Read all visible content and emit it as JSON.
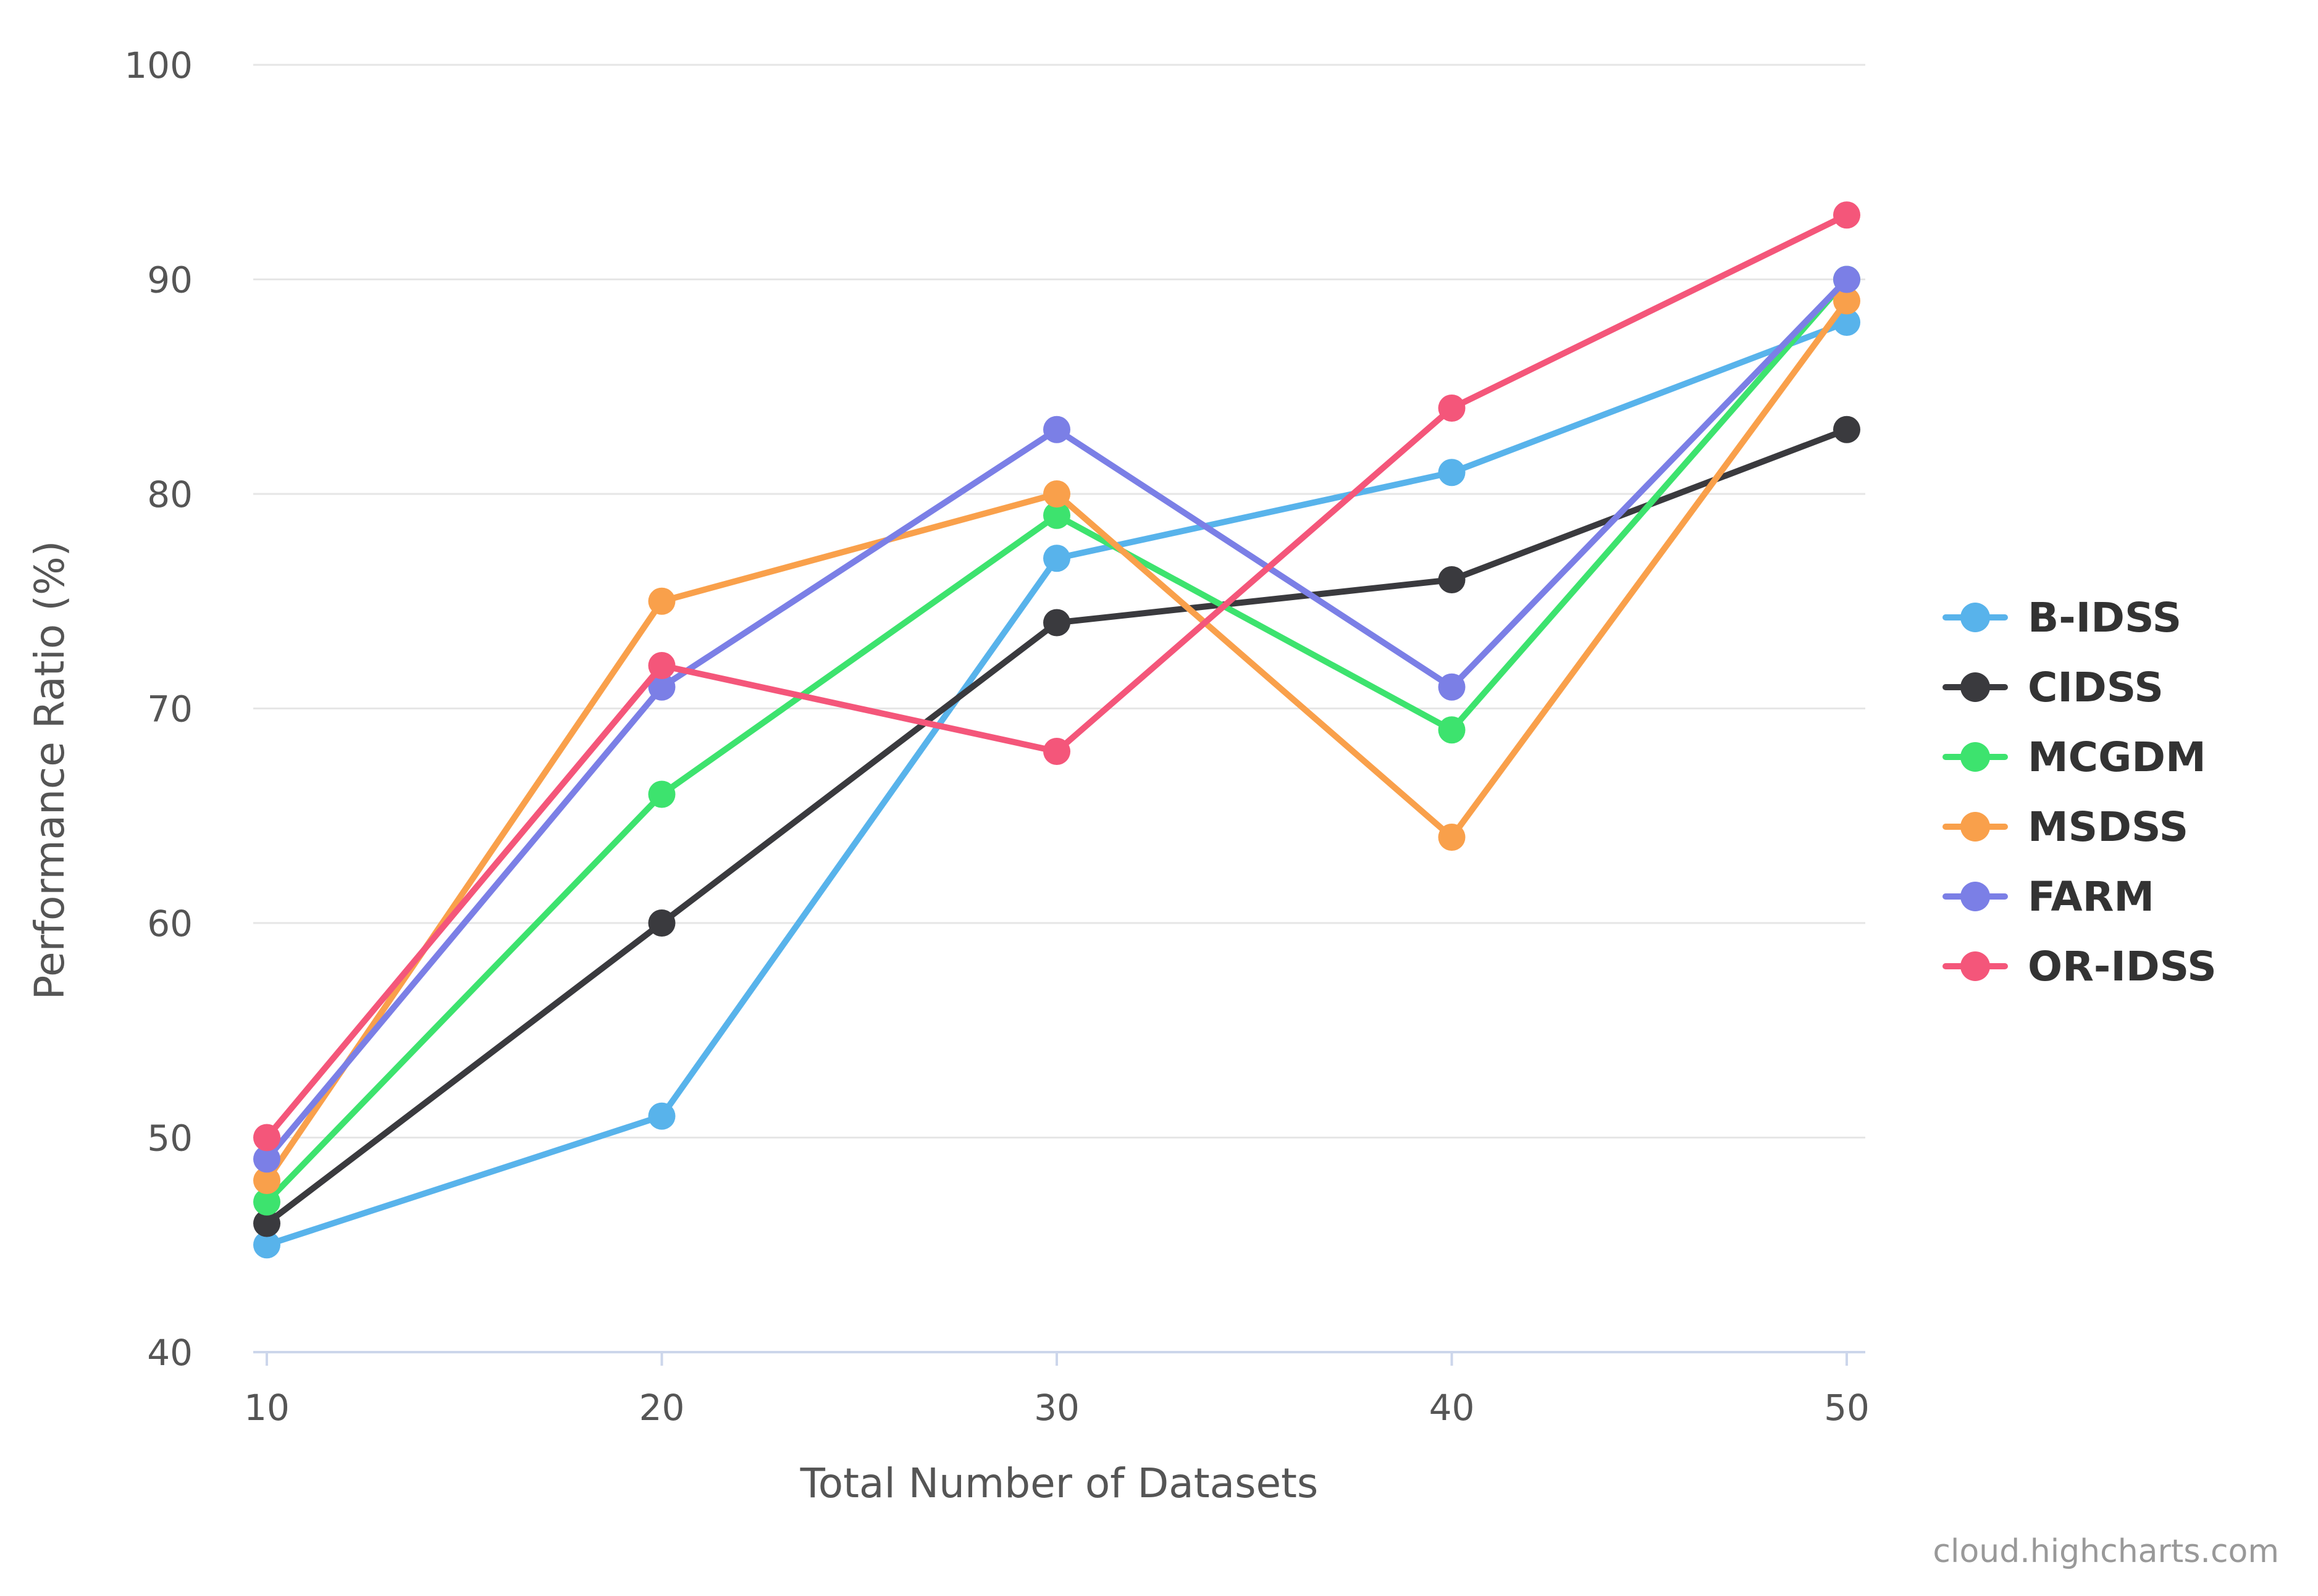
{
  "chart_data": {
    "type": "line",
    "title": "",
    "xlabel": "Total Number of Datasets",
    "ylabel": "Performance Ratio (%)",
    "x": [
      10,
      20,
      30,
      40,
      50
    ],
    "x_ticks": [
      "10",
      "20",
      "30",
      "40",
      "50"
    ],
    "y_ticks": [
      "40",
      "50",
      "60",
      "70",
      "80",
      "90",
      "100"
    ],
    "xlim": [
      10,
      50
    ],
    "ylim": [
      40,
      100
    ],
    "grid": "horizontal",
    "legend_position": "right",
    "series": [
      {
        "name": "B-IDSS",
        "color": "#58b3eb",
        "values": [
          45,
          51,
          77,
          81,
          88
        ]
      },
      {
        "name": "CIDSS",
        "color": "#3a3a3e",
        "values": [
          46,
          60,
          74,
          76,
          83
        ]
      },
      {
        "name": "MCGDM",
        "color": "#3de36e",
        "values": [
          47,
          66,
          79,
          69,
          90
        ]
      },
      {
        "name": "MSDSS",
        "color": "#f9a04b",
        "values": [
          48,
          75,
          80,
          64,
          89
        ]
      },
      {
        "name": "FARM",
        "color": "#7b7fe6",
        "values": [
          49,
          71,
          83,
          71,
          90
        ]
      },
      {
        "name": "OR-IDSS",
        "color": "#f4567a",
        "values": [
          50,
          72,
          68,
          84,
          93
        ]
      }
    ],
    "credits": "cloud.highcharts.com"
  }
}
